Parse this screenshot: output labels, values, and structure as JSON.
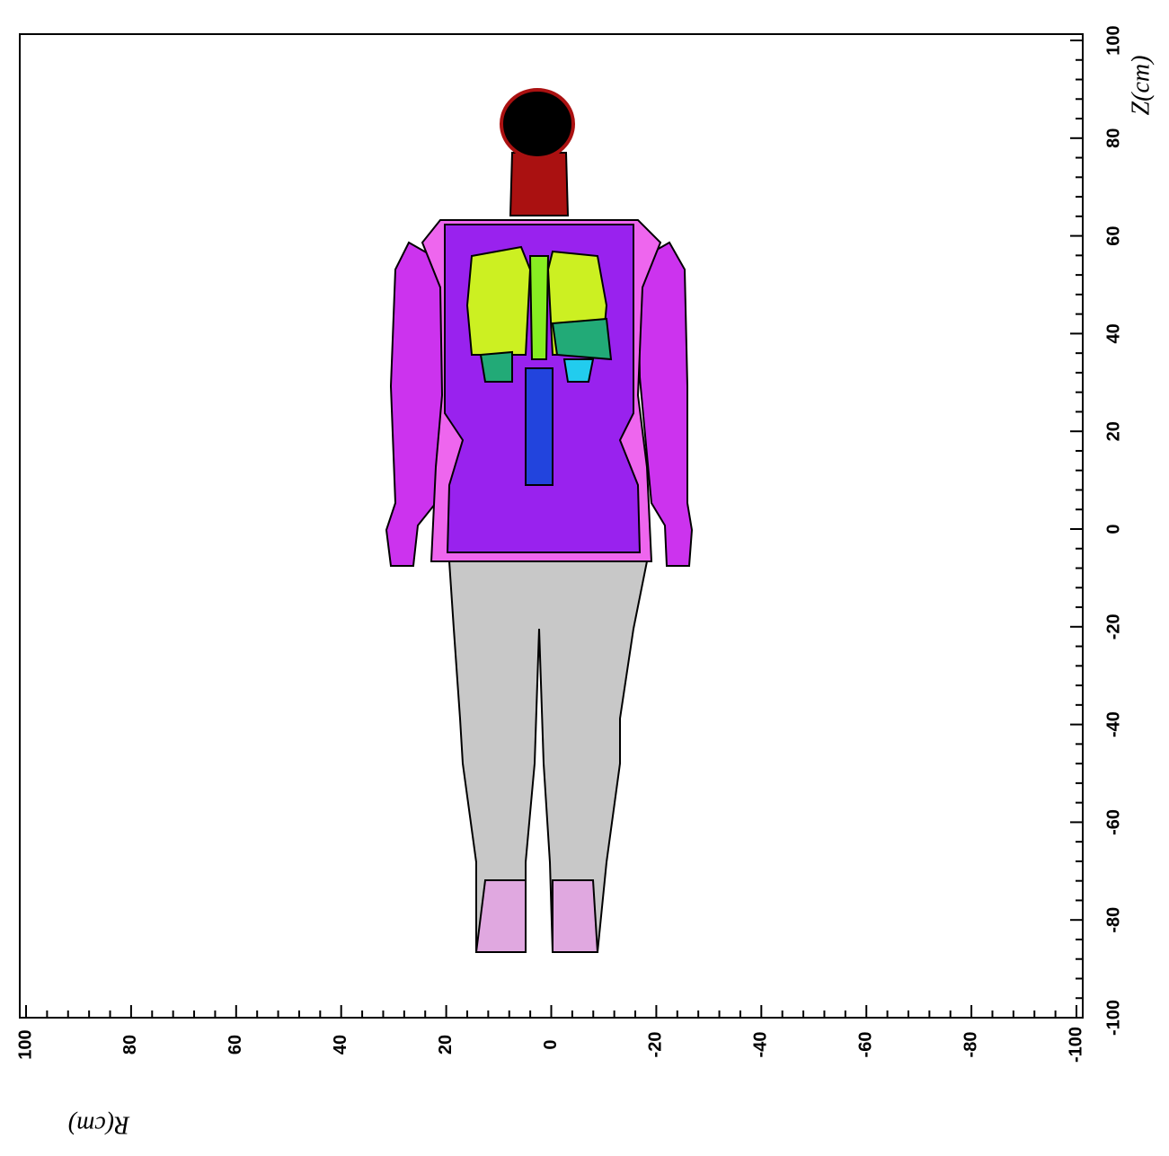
{
  "chart_data": {
    "type": "image",
    "x_label": "R(cm)",
    "y_label": "Z(cm)",
    "xlim": [
      100,
      -100
    ],
    "xticks": [
      100,
      80,
      60,
      40,
      20,
      0,
      -20,
      -40,
      -60,
      -80,
      -100
    ],
    "ylim": [
      -100,
      100
    ],
    "yticks": [
      -100,
      -80,
      -60,
      -40,
      -20,
      0,
      20,
      40,
      60,
      80,
      100
    ]
  }
}
